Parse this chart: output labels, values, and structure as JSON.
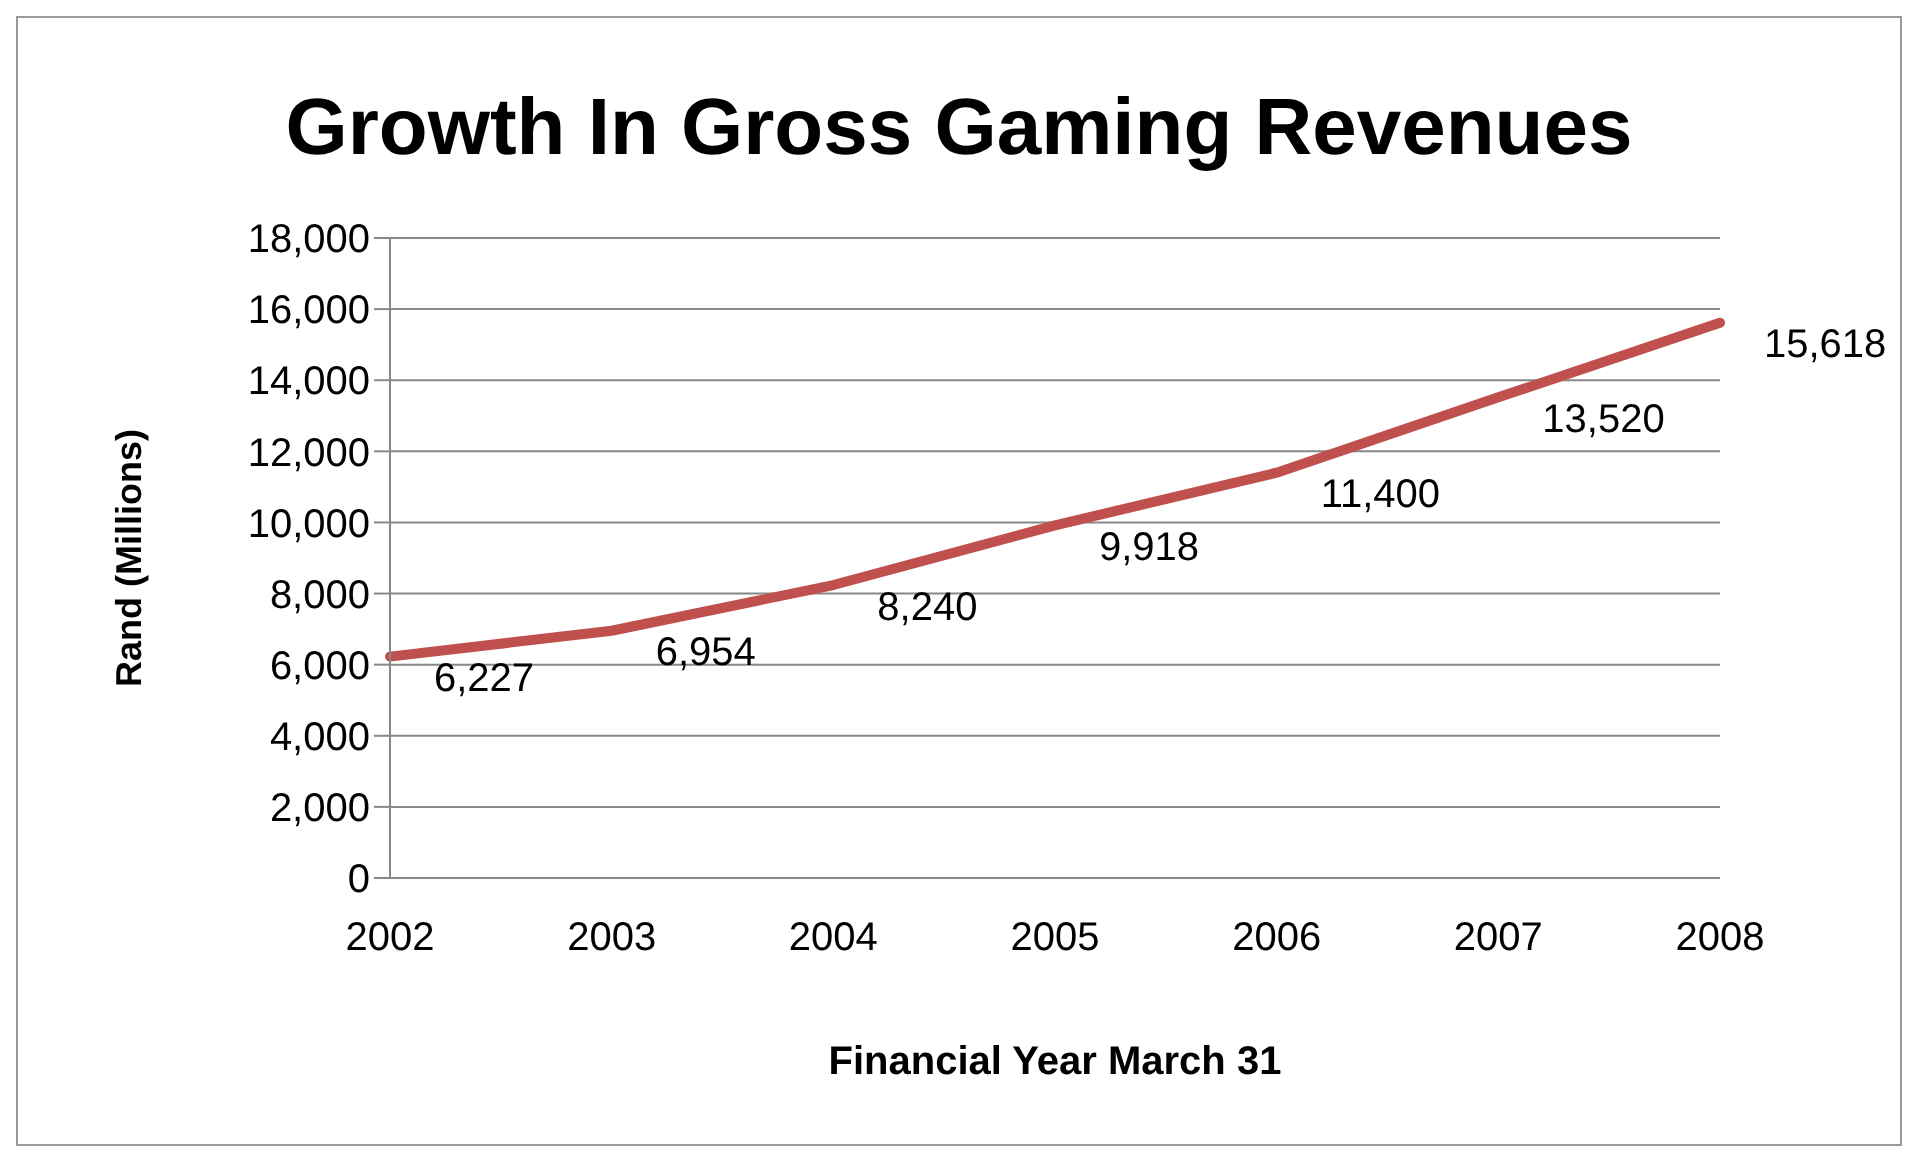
{
  "chart_data": {
    "type": "line",
    "title": "Growth In Gross Gaming Revenues",
    "xlabel": "Financial Year March 31",
    "ylabel": "Rand (Millions)",
    "categories": [
      "2002",
      "2003",
      "2004",
      "2005",
      "2006",
      "2007",
      "2008"
    ],
    "series": [
      {
        "color": "#c0504d",
        "values": [
          6227,
          6954,
          8240,
          9918,
          11400,
          13520,
          15618
        ],
        "value_labels": [
          "6,227",
          "6,954",
          "8,240",
          "9,918",
          "11,400",
          "13,520",
          "15,618"
        ]
      }
    ],
    "ylim": [
      0,
      18000
    ],
    "yticks": [
      0,
      {
        "value": 2000,
        "label": "2,000"
      },
      {
        "value": 4000,
        "label": "4,000"
      },
      {
        "value": 6000,
        "label": "6,000"
      },
      {
        "value": 8000,
        "label": "8,000"
      },
      {
        "value": 10000,
        "label": "10,000"
      },
      {
        "value": 12000,
        "label": "12,000"
      },
      {
        "value": 14000,
        "label": "14,000"
      },
      {
        "value": 16000,
        "label": "16,000"
      },
      {
        "value": 18000,
        "label": "18,000"
      }
    ],
    "grid": "y",
    "legend": false,
    "marker": "none",
    "line_style": "solid"
  }
}
